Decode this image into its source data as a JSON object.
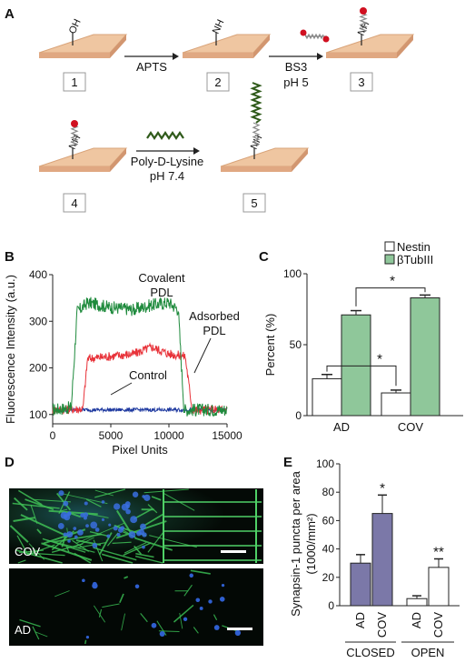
{
  "panels": {
    "A": "A",
    "B": "B",
    "C": "C",
    "D": "D",
    "E": "E"
  },
  "panel_a": {
    "groups": [
      "OH",
      "NH",
      "NH",
      "NH",
      "NH"
    ],
    "steps": [
      "1",
      "2",
      "3",
      "4",
      "5"
    ],
    "arrow1": "APTS",
    "arrow2_line1": "BS3",
    "arrow2_line2": "pH 5",
    "arrow3_line1": "Poly-D-Lysine",
    "arrow3_line2": "pH 7.4",
    "colors": {
      "slab": "#efc6a1",
      "slab_edge": "#d9a47a",
      "pdl": "#2f5a1a",
      "crosslinker_end": "#d01020"
    }
  },
  "chart_data": [
    {
      "panel": "B",
      "type": "line",
      "ylabel": "Fluorescence Intensity (a.u.)",
      "xlabel": "Pixel Units",
      "xlim": [
        0,
        15000
      ],
      "ylim": [
        80,
        400
      ],
      "xticks": [
        "0",
        "5000",
        "10000",
        "15000"
      ],
      "yticks": [
        "100",
        "200",
        "300",
        "400"
      ],
      "series": [
        {
          "name": "Covalent PDL",
          "label_line1": "Covalent",
          "label_line2": "PDL",
          "color": "#1e8a3c",
          "x": [
            0,
            1600,
            2100,
            3000,
            5000,
            7000,
            8500,
            10000,
            10800,
            11300,
            15000
          ],
          "y": [
            110,
            115,
            320,
            340,
            330,
            325,
            335,
            340,
            325,
            110,
            110
          ]
        },
        {
          "name": "Adsorbed PDL",
          "label_line1": "Adsorbed",
          "label_line2": "PDL",
          "color": "#e8333a",
          "x": [
            0,
            2600,
            3000,
            5000,
            7000,
            8500,
            10000,
            11400,
            12000,
            15000
          ],
          "y": [
            110,
            112,
            220,
            225,
            230,
            245,
            230,
            225,
            110,
            110
          ]
        },
        {
          "name": "Control",
          "label_line1": "Control",
          "color": "#1f3aa0",
          "x": [
            0,
            15000
          ],
          "y": [
            110,
            110
          ]
        }
      ]
    },
    {
      "panel": "C",
      "type": "bar",
      "ylabel": "Percent (%)",
      "categories": [
        "AD",
        "COV"
      ],
      "ylim": [
        0,
        100
      ],
      "yticks": [
        "0",
        "50",
        "100"
      ],
      "series": [
        {
          "name": "Nestin",
          "color": "#ffffff",
          "values": [
            26,
            16
          ],
          "errors": [
            3,
            2
          ]
        },
        {
          "name": "βTubIII",
          "color": "#8fc79a",
          "values": [
            71,
            83
          ],
          "errors": [
            3,
            2
          ]
        }
      ],
      "significance": [
        "*",
        "*"
      ]
    },
    {
      "panel": "E",
      "type": "bar",
      "ylabel_line1": "Synapsin-1 puncta per area",
      "ylabel_line2": "(1000/mm²)",
      "categories": [
        "AD",
        "COV",
        "AD",
        "COV"
      ],
      "groups": [
        "CLOSED",
        "OPEN"
      ],
      "ylim": [
        0,
        100
      ],
      "yticks": [
        "0",
        "20",
        "40",
        "60",
        "80",
        "100"
      ],
      "values": [
        30,
        65,
        5,
        27
      ],
      "errors": [
        6,
        13,
        2,
        6
      ],
      "colors": [
        "#7b78a8",
        "#7b78a8",
        "#ffffff",
        "#ffffff"
      ],
      "significance": [
        "",
        "*",
        "",
        "**"
      ]
    }
  ],
  "panel_d": {
    "image1_label": "COV",
    "image2_label": "AD"
  }
}
